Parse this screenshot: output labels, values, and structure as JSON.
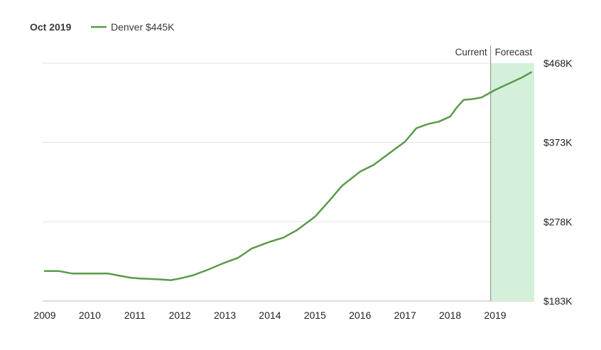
{
  "header": {
    "date": "Oct 2019",
    "series_label": "Denver $445K"
  },
  "colors": {
    "line": "#5a9a4a",
    "forecast_fill": "#d4f0da",
    "grid": "#e2e2e2",
    "divider": "#888888"
  },
  "chart_data": {
    "type": "line",
    "title": "",
    "xlabel": "",
    "ylabel": "",
    "xlim": [
      2009,
      2019.9
    ],
    "ylim": [
      183,
      468
    ],
    "x_ticks": [
      2009,
      2010,
      2011,
      2012,
      2013,
      2014,
      2015,
      2016,
      2017,
      2018,
      2019
    ],
    "x_tick_labels": [
      "2009",
      "2010",
      "2011",
      "2012",
      "2013",
      "2014",
      "2015",
      "2016",
      "2017",
      "2018",
      "2019"
    ],
    "y_ticks": [
      183,
      278,
      373,
      468
    ],
    "y_tick_labels": [
      "$183K",
      "$278K",
      "$373K",
      "$468K"
    ],
    "current_x": 2018.9,
    "region_labels": {
      "current": "Current",
      "forecast": "Forecast"
    },
    "forecast_range": [
      2018.9,
      2019.8
    ],
    "series": [
      {
        "name": "Denver",
        "values_k": [
          [
            2009.0,
            219
          ],
          [
            2009.3,
            219
          ],
          [
            2009.6,
            216
          ],
          [
            2010.0,
            216
          ],
          [
            2010.4,
            216
          ],
          [
            2010.6,
            214
          ],
          [
            2010.9,
            211
          ],
          [
            2011.1,
            210
          ],
          [
            2011.5,
            209
          ],
          [
            2011.8,
            208
          ],
          [
            2012.0,
            210
          ],
          [
            2012.3,
            214
          ],
          [
            2012.6,
            220
          ],
          [
            2013.0,
            229
          ],
          [
            2013.3,
            235
          ],
          [
            2013.6,
            246
          ],
          [
            2014.0,
            254
          ],
          [
            2014.3,
            259
          ],
          [
            2014.6,
            268
          ],
          [
            2015.0,
            284
          ],
          [
            2015.3,
            302
          ],
          [
            2015.6,
            321
          ],
          [
            2016.0,
            338
          ],
          [
            2016.3,
            346
          ],
          [
            2016.6,
            358
          ],
          [
            2017.0,
            374
          ],
          [
            2017.25,
            390
          ],
          [
            2017.5,
            395
          ],
          [
            2017.75,
            398
          ],
          [
            2018.0,
            404
          ],
          [
            2018.15,
            415
          ],
          [
            2018.3,
            424
          ],
          [
            2018.5,
            425
          ],
          [
            2018.7,
            427
          ],
          [
            2018.9,
            433
          ],
          [
            2019.0,
            436
          ],
          [
            2019.2,
            441
          ],
          [
            2019.4,
            446
          ],
          [
            2019.6,
            451
          ],
          [
            2019.8,
            457
          ]
        ]
      }
    ]
  }
}
